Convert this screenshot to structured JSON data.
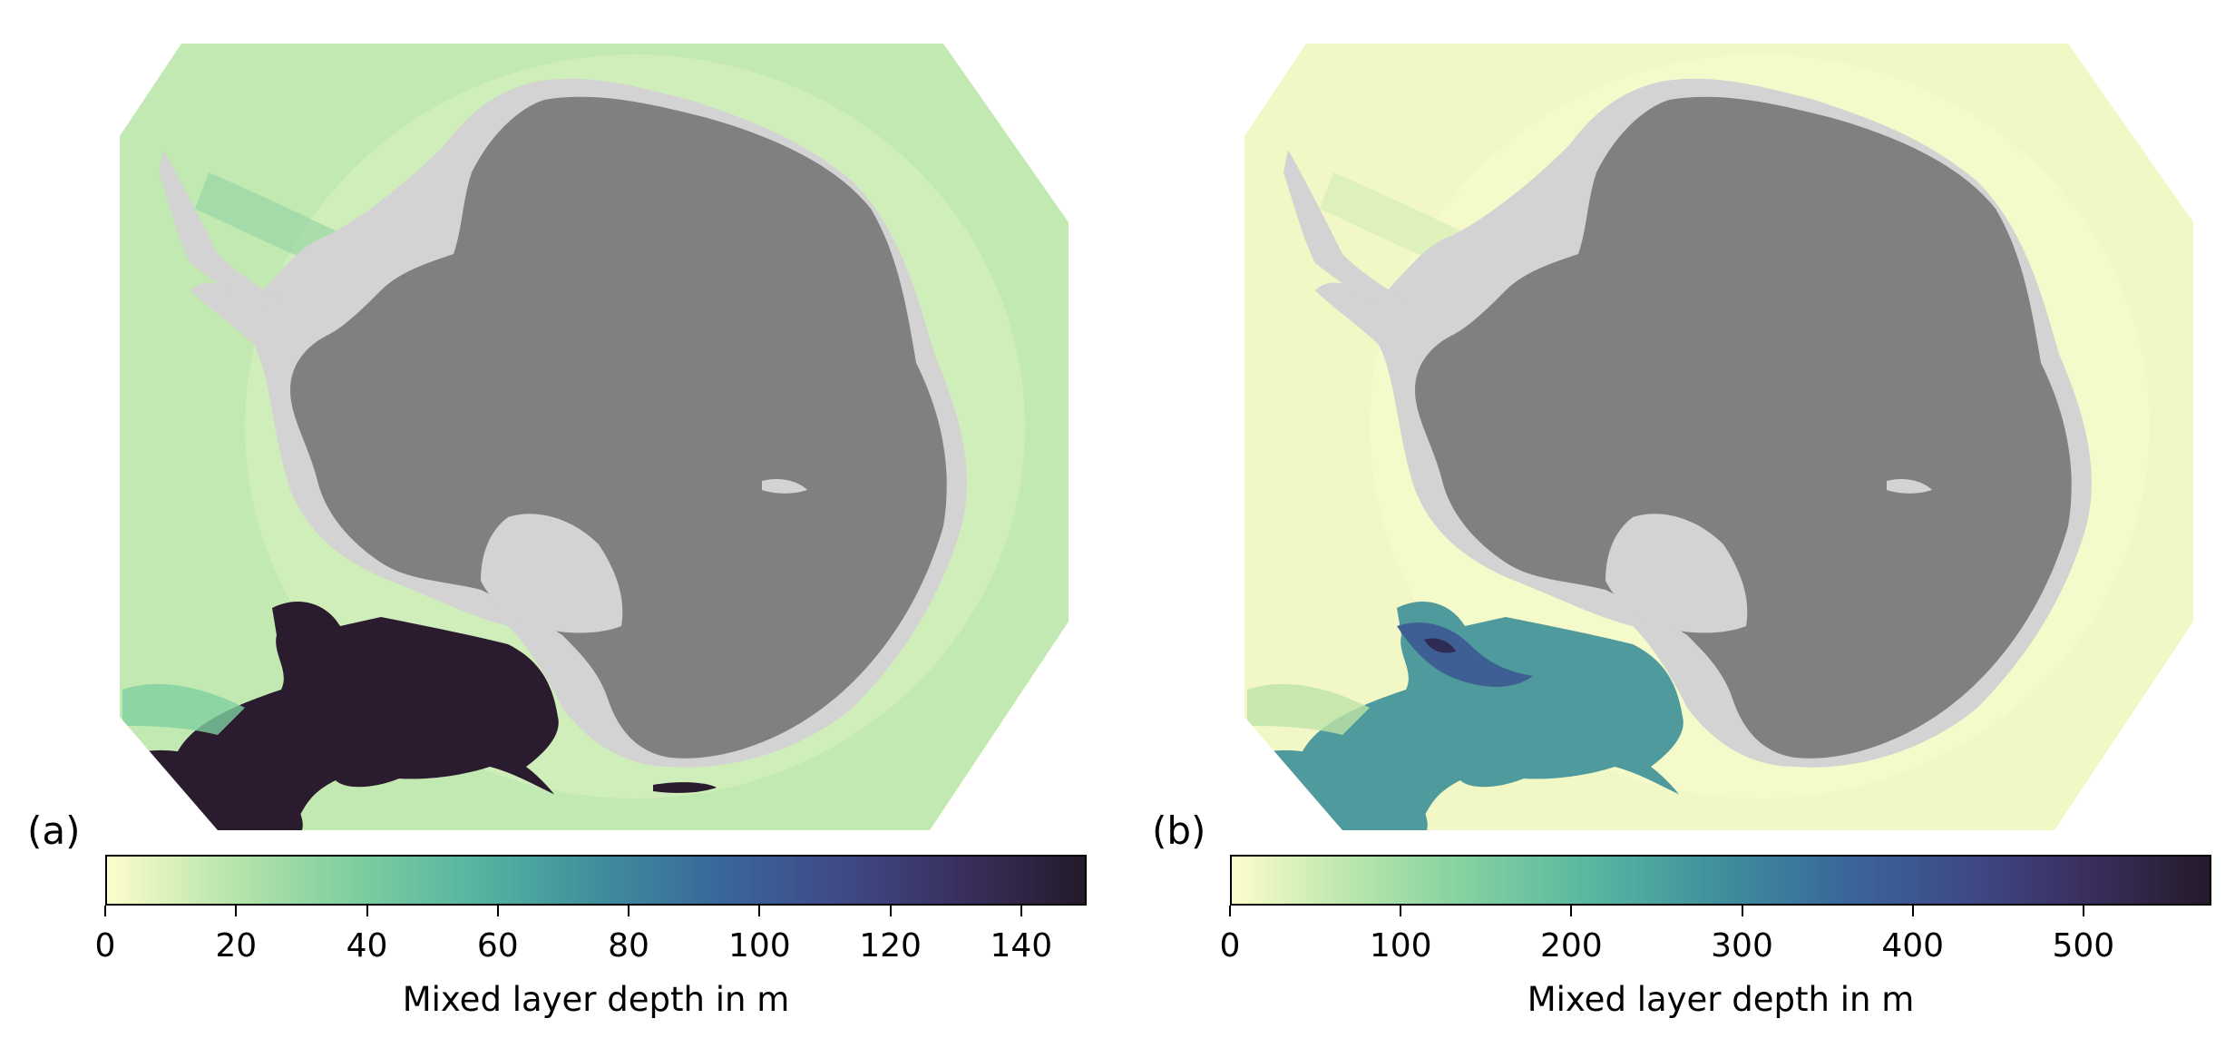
{
  "colors": {
    "land": "#808080",
    "ice_shelf": "#d3d3d3",
    "colormap": [
      "#fdfdcc",
      "#b8e5ab",
      "#7fcfa0",
      "#56b5a0",
      "#3f8f9c",
      "#39679a",
      "#3e4a87",
      "#3a2f5e",
      "#241a2a"
    ]
  },
  "panels": [
    {
      "label": "(a)",
      "colorbar": {
        "label": "Mixed layer depth in m",
        "vmin": 0,
        "vmax": 150,
        "ticks": [
          0,
          20,
          40,
          60,
          80,
          100,
          120,
          140
        ],
        "tick_labels": [
          "0",
          "20",
          "40",
          "60",
          "80",
          "100",
          "120",
          "140"
        ]
      }
    },
    {
      "label": "(b)",
      "colorbar": {
        "label": "Mixed layer depth in m",
        "vmin": 0,
        "vmax": 575,
        "ticks": [
          0,
          100,
          200,
          300,
          400,
          500
        ],
        "tick_labels": [
          "0",
          "100",
          "200",
          "300",
          "400",
          "500"
        ]
      }
    }
  ]
}
